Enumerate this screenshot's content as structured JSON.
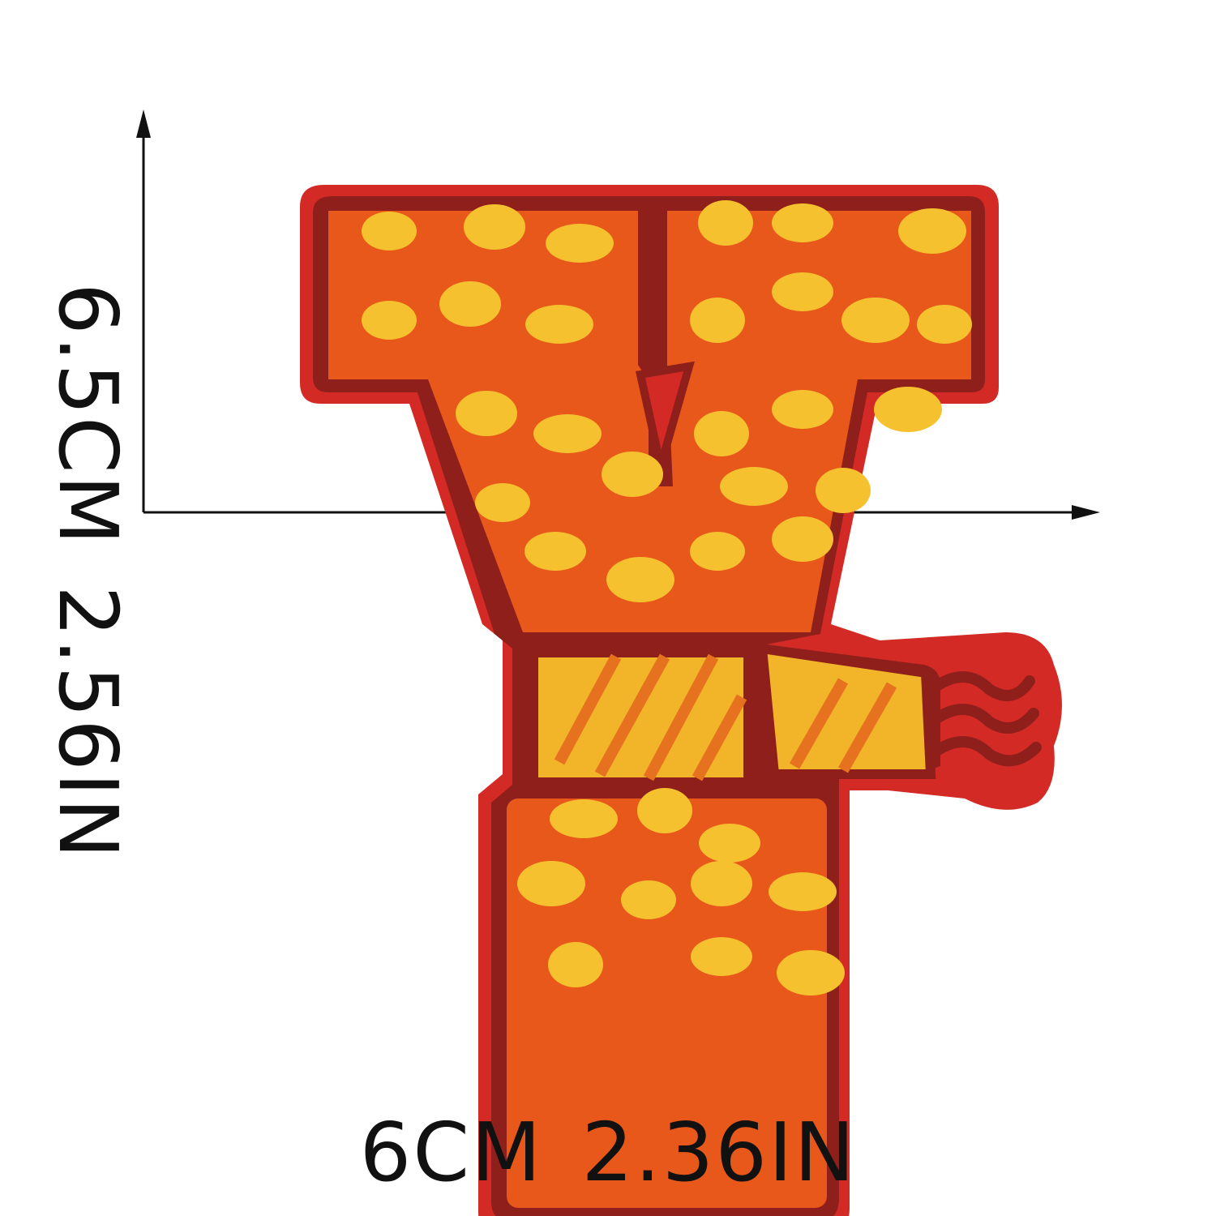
{
  "dimensions": {
    "width_cm": "6CM",
    "width_in": "2.36IN",
    "height_cm": "6.5CM",
    "height_in": "2.56IN"
  },
  "patch": {
    "letter_shape": "Y",
    "style": "embroidered patch with polka dots and scarf",
    "colors": {
      "border": "#d42a25",
      "outline": "#8f1f1b",
      "body": "#e8581a",
      "dots": "#f6c12f",
      "scarf": "#f2b52a",
      "scarf_stripe": "#e6711f"
    }
  },
  "arrow_color": "#111111"
}
